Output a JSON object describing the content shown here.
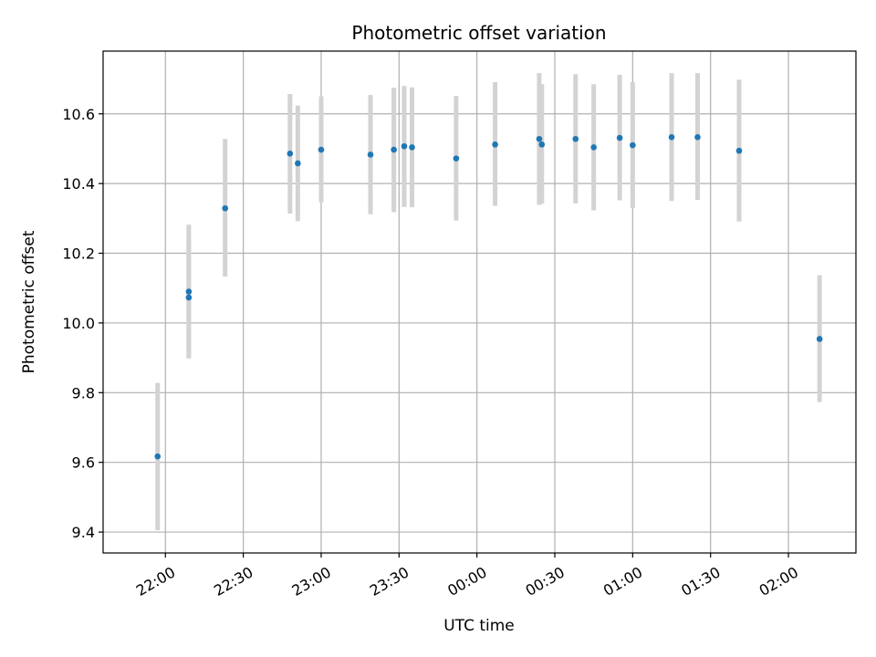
{
  "chart_data": {
    "type": "scatter",
    "title": "Photometric offset variation",
    "xlabel": "UTC time",
    "ylabel": "Photometric offset",
    "grid": true,
    "legend": "none",
    "marker_color": "#1f77b4",
    "errorbar_color": "#d3d3d3",
    "xlim": [
      "21:36",
      "02:26"
    ],
    "ylim": [
      9.34,
      10.78
    ],
    "x_ticks": [
      "22:00",
      "22:30",
      "23:00",
      "23:30",
      "00:00",
      "00:30",
      "01:00",
      "01:30",
      "02:00"
    ],
    "y_ticks": [
      "9.4",
      "9.6",
      "9.8",
      "10.0",
      "10.2",
      "10.4",
      "10.6"
    ],
    "points": [
      {
        "time": "21:57",
        "y": 9.617,
        "ylow": 9.405,
        "yhigh": 9.828
      },
      {
        "time": "22:09",
        "y": 10.09,
        "ylow": 9.898,
        "yhigh": 10.282
      },
      {
        "time": "22:09",
        "y": 10.073,
        "ylow": 9.905,
        "yhigh": 10.242
      },
      {
        "time": "22:23",
        "y": 10.329,
        "ylow": 10.133,
        "yhigh": 10.528
      },
      {
        "time": "22:48",
        "y": 10.486,
        "ylow": 10.314,
        "yhigh": 10.657
      },
      {
        "time": "22:51",
        "y": 10.458,
        "ylow": 10.292,
        "yhigh": 10.624
      },
      {
        "time": "23:00",
        "y": 10.497,
        "ylow": 10.346,
        "yhigh": 10.65
      },
      {
        "time": "23:19",
        "y": 10.483,
        "ylow": 10.312,
        "yhigh": 10.654
      },
      {
        "time": "23:28",
        "y": 10.497,
        "ylow": 10.318,
        "yhigh": 10.675
      },
      {
        "time": "23:32",
        "y": 10.507,
        "ylow": 10.333,
        "yhigh": 10.68
      },
      {
        "time": "23:35",
        "y": 10.504,
        "ylow": 10.332,
        "yhigh": 10.676
      },
      {
        "time": "23:52",
        "y": 10.472,
        "ylow": 10.294,
        "yhigh": 10.651
      },
      {
        "time": "00:07",
        "y": 10.512,
        "ylow": 10.336,
        "yhigh": 10.691
      },
      {
        "time": "00:24",
        "y": 10.528,
        "ylow": 10.339,
        "yhigh": 10.717
      },
      {
        "time": "00:25",
        "y": 10.512,
        "ylow": 10.342,
        "yhigh": 10.685
      },
      {
        "time": "00:38",
        "y": 10.528,
        "ylow": 10.343,
        "yhigh": 10.714
      },
      {
        "time": "00:45",
        "y": 10.504,
        "ylow": 10.323,
        "yhigh": 10.685
      },
      {
        "time": "00:55",
        "y": 10.531,
        "ylow": 10.352,
        "yhigh": 10.712
      },
      {
        "time": "01:00",
        "y": 10.51,
        "ylow": 10.33,
        "yhigh": 10.691
      },
      {
        "time": "01:15",
        "y": 10.533,
        "ylow": 10.35,
        "yhigh": 10.717
      },
      {
        "time": "01:25",
        "y": 10.533,
        "ylow": 10.353,
        "yhigh": 10.717
      },
      {
        "time": "01:41",
        "y": 10.494,
        "ylow": 10.291,
        "yhigh": 10.698
      },
      {
        "time": "02:12",
        "y": 9.954,
        "ylow": 9.773,
        "yhigh": 10.137
      }
    ]
  }
}
